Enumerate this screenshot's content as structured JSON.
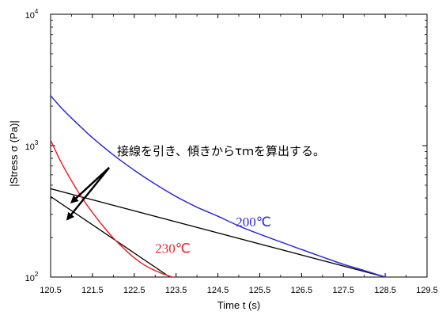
{
  "chart_data": {
    "type": "line",
    "xlabel": "Time t (s)",
    "ylabel": "|Stress σ (Pa)|",
    "xlim": [
      120.5,
      129.5
    ],
    "ylim": [
      100,
      10000
    ],
    "y_scale": "log",
    "x_ticks": [
      "120.5",
      "121.5",
      "122.5",
      "123.5",
      "124.5",
      "125.5",
      "126.5",
      "127.5",
      "128.5",
      "129.5"
    ],
    "y_ticks": [
      {
        "base": "10",
        "exp": "2",
        "value": 100
      },
      {
        "base": "10",
        "exp": "3",
        "value": 1000
      },
      {
        "base": "10",
        "exp": "4",
        "value": 10000
      }
    ],
    "series": [
      {
        "name": "200℃",
        "color": "#2b2bdc",
        "x": [
          120.5,
          120.75,
          121.0,
          121.25,
          121.5,
          122.0,
          122.5,
          123.0,
          123.5,
          124.0,
          124.5,
          125.0,
          125.5,
          126.0,
          126.5,
          127.0,
          127.5,
          128.0,
          128.5
        ],
        "y": [
          2400,
          1950,
          1620,
          1360,
          1150,
          850,
          650,
          510,
          410,
          340,
          290,
          245,
          212,
          185,
          162,
          142,
          125,
          112,
          100
        ]
      },
      {
        "name": "230℃",
        "color": "#e8262c",
        "x": [
          120.5,
          120.75,
          121.0,
          121.25,
          121.5,
          121.75,
          122.0,
          122.25,
          122.5,
          122.75,
          123.0,
          123.25,
          123.5
        ],
        "y": [
          1100,
          750,
          540,
          400,
          310,
          245,
          198,
          165,
          140,
          123,
          112,
          104,
          98
        ]
      }
    ],
    "tangent_lines": [
      {
        "color": "#000000",
        "x": [
          120.5,
          128.5
        ],
        "y": [
          470,
          100
        ]
      },
      {
        "color": "#000000",
        "x": [
          120.5,
          123.35
        ],
        "y": [
          410,
          100
        ]
      }
    ],
    "annotation": {
      "text": "接線を引き、傾きからτｍを算出する。",
      "arrow_tips": [
        {
          "x": 121.0,
          "y": 370
        },
        {
          "x": 120.9,
          "y": 275
        }
      ],
      "arrow_origin": {
        "x": 121.9,
        "y": 680
      }
    }
  }
}
